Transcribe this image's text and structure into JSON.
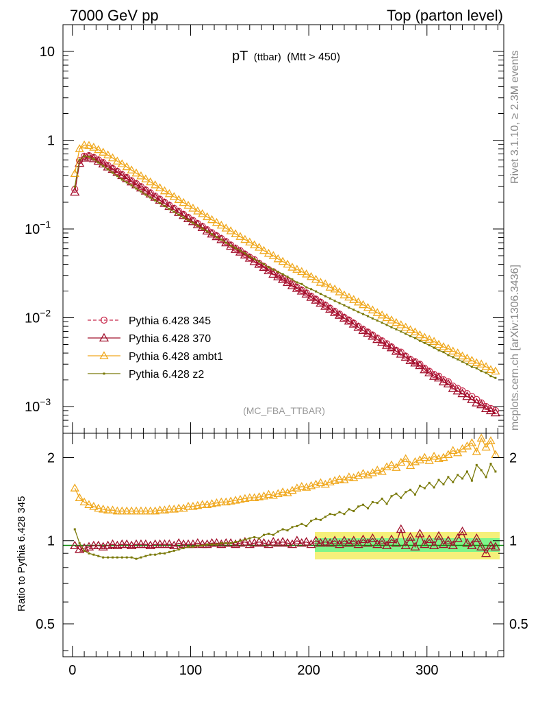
{
  "header": {
    "left": "7000 GeV pp",
    "right": "Top (parton level)"
  },
  "side_labels": {
    "top": "Rivet 3.1.10, ≥ 2.3M events",
    "bottom": "mcplots.cern.ch [arXiv:1306.3436]"
  },
  "colors": {
    "p345": "#c8284b",
    "p370": "#a0102c",
    "ambt1": "#f0a81e",
    "z2": "#7a7a0a",
    "band_yellow": "#f5f07a",
    "band_green": "#7ff58a",
    "ref_line": "#0a8a0a"
  },
  "chart_data": [
    {
      "type": "line",
      "title": "pT (ttbar) (Mtt > 450)",
      "title_parts": {
        "main": "pT",
        "paren": "(ttbar)",
        "cut": "(Mtt > 450)"
      },
      "watermark": "(MC_FBA_TTBAR)",
      "yscale": "log",
      "ylim": [
        0.0005,
        20
      ],
      "xlim": [
        -8,
        365
      ],
      "yticks": [
        {
          "v": 10,
          "label": "10",
          "exp": ""
        },
        {
          "v": 1,
          "label": "1",
          "exp": ""
        },
        {
          "v": 0.1,
          "label": "10",
          "exp": "−1"
        },
        {
          "v": 0.01,
          "label": "10",
          "exp": "−2"
        },
        {
          "v": 0.001,
          "label": "10",
          "exp": "−3"
        }
      ],
      "legend": [
        {
          "name": "Pythia 6.428 345",
          "key": "p345"
        },
        {
          "name": "Pythia 6.428 370",
          "key": "p370"
        },
        {
          "name": "Pythia 6.428 ambt1",
          "key": "ambt1"
        },
        {
          "name": "Pythia 6.428 z2",
          "key": "z2"
        }
      ],
      "x": [
        2,
        6,
        10,
        14,
        18,
        22,
        26,
        30,
        34,
        38,
        42,
        46,
        50,
        54,
        58,
        62,
        66,
        70,
        74,
        78,
        82,
        86,
        90,
        94,
        98,
        102,
        106,
        110,
        114,
        118,
        122,
        126,
        130,
        134,
        138,
        142,
        146,
        150,
        154,
        158,
        162,
        166,
        170,
        174,
        178,
        182,
        186,
        190,
        194,
        198,
        202,
        206,
        210,
        214,
        218,
        222,
        226,
        230,
        234,
        238,
        242,
        246,
        250,
        254,
        258,
        262,
        266,
        270,
        274,
        278,
        282,
        286,
        290,
        294,
        298,
        302,
        306,
        310,
        314,
        318,
        322,
        326,
        330,
        334,
        338,
        342,
        346,
        350,
        354,
        358
      ],
      "series": [
        {
          "name": "Pythia 6.428 345",
          "key": "p345",
          "values": [
            0.28,
            0.59,
            0.66,
            0.67,
            0.64,
            0.6,
            0.56,
            0.52,
            0.48,
            0.445,
            0.41,
            0.38,
            0.35,
            0.325,
            0.3,
            0.275,
            0.255,
            0.235,
            0.217,
            0.2,
            0.185,
            0.171,
            0.158,
            0.146,
            0.135,
            0.125,
            0.115,
            0.107,
            0.098,
            0.091,
            0.084,
            0.078,
            0.072,
            0.066,
            0.061,
            0.057,
            0.052,
            0.048,
            0.045,
            0.041,
            0.038,
            0.035,
            0.033,
            0.03,
            0.028,
            0.026,
            0.024,
            0.022,
            0.0205,
            0.019,
            0.0175,
            0.0162,
            0.015,
            0.0139,
            0.0128,
            0.0118,
            0.011,
            0.0101,
            0.0094,
            0.0087,
            0.008,
            0.0074,
            0.0069,
            0.0064,
            0.0059,
            0.0055,
            0.0051,
            0.0047,
            0.0043,
            0.0041,
            0.0037,
            0.0034,
            0.0032,
            0.003,
            0.0027,
            0.0025,
            0.0023,
            0.0022,
            0.002,
            0.0019,
            0.0017,
            0.0016,
            0.0015,
            0.0014,
            0.0013,
            0.0012,
            0.0011,
            0.001,
            0.00095,
            0.0009
          ]
        },
        {
          "name": "Pythia 6.428 370",
          "key": "p370",
          "values": [
            0.26,
            0.55,
            0.63,
            0.65,
            0.62,
            0.58,
            0.54,
            0.5,
            0.47,
            0.435,
            0.4,
            0.37,
            0.34,
            0.315,
            0.29,
            0.268,
            0.248,
            0.228,
            0.211,
            0.195,
            0.18,
            0.166,
            0.154,
            0.142,
            0.131,
            0.121,
            0.112,
            0.104,
            0.095,
            0.088,
            0.082,
            0.076,
            0.07,
            0.064,
            0.059,
            0.055,
            0.051,
            0.047,
            0.043,
            0.04,
            0.037,
            0.034,
            0.031,
            0.029,
            0.027,
            0.025,
            0.023,
            0.0215,
            0.02,
            0.0185,
            0.017,
            0.0158,
            0.0146,
            0.0135,
            0.0125,
            0.0115,
            0.0107,
            0.0099,
            0.0092,
            0.0085,
            0.0078,
            0.0072,
            0.0067,
            0.0062,
            0.0057,
            0.0053,
            0.0049,
            0.0046,
            0.0042,
            0.0039,
            0.0036,
            0.0033,
            0.0031,
            0.0029,
            0.0026,
            0.0024,
            0.0022,
            0.0021,
            0.0019,
            0.0018,
            0.0016,
            0.0015,
            0.0014,
            0.0013,
            0.0012,
            0.0011,
            0.00105,
            0.00095,
            0.0009,
            0.00085
          ]
        },
        {
          "name": "Pythia 6.428 ambt1",
          "key": "ambt1",
          "values": [
            0.42,
            0.8,
            0.88,
            0.87,
            0.83,
            0.78,
            0.73,
            0.68,
            0.63,
            0.58,
            0.54,
            0.5,
            0.46,
            0.425,
            0.395,
            0.365,
            0.338,
            0.313,
            0.29,
            0.268,
            0.249,
            0.231,
            0.214,
            0.198,
            0.184,
            0.171,
            0.159,
            0.148,
            0.137,
            0.127,
            0.118,
            0.11,
            0.102,
            0.095,
            0.088,
            0.082,
            0.076,
            0.071,
            0.066,
            0.062,
            0.057,
            0.053,
            0.05,
            0.046,
            0.043,
            0.04,
            0.037,
            0.035,
            0.033,
            0.031,
            0.029,
            0.027,
            0.025,
            0.024,
            0.022,
            0.021,
            0.0195,
            0.018,
            0.017,
            0.016,
            0.015,
            0.014,
            0.013,
            0.0122,
            0.0114,
            0.0107,
            0.01,
            0.0094,
            0.0088,
            0.0083,
            0.0078,
            0.0073,
            0.0069,
            0.0064,
            0.006,
            0.0057,
            0.0054,
            0.005,
            0.0047,
            0.0045,
            0.0042,
            0.004,
            0.0037,
            0.0035,
            0.0033,
            0.0031,
            0.003,
            0.0028,
            0.0026,
            0.0025
          ]
        },
        {
          "name": "Pythia 6.428 z2",
          "key": "z2",
          "values": [
            0.3,
            0.6,
            0.66,
            0.65,
            0.61,
            0.56,
            0.51,
            0.47,
            0.43,
            0.395,
            0.36,
            0.335,
            0.31,
            0.285,
            0.265,
            0.243,
            0.226,
            0.21,
            0.195,
            0.181,
            0.168,
            0.156,
            0.145,
            0.135,
            0.126,
            0.117,
            0.109,
            0.101,
            0.094,
            0.087,
            0.081,
            0.076,
            0.07,
            0.065,
            0.061,
            0.057,
            0.053,
            0.049,
            0.046,
            0.043,
            0.04,
            0.037,
            0.035,
            0.033,
            0.031,
            0.029,
            0.027,
            0.025,
            0.024,
            0.022,
            0.021,
            0.0198,
            0.0186,
            0.0175,
            0.0165,
            0.0155,
            0.0146,
            0.0138,
            0.013,
            0.0123,
            0.0116,
            0.011,
            0.0104,
            0.0098,
            0.0093,
            0.0088,
            0.0083,
            0.0078,
            0.0074,
            0.007,
            0.0066,
            0.0062,
            0.0059,
            0.0055,
            0.0052,
            0.0049,
            0.0046,
            0.0043,
            0.0041,
            0.0038,
            0.0036,
            0.0034,
            0.0032,
            0.003,
            0.0028,
            0.0027,
            0.0025,
            0.0024,
            0.0022,
            0.0021
          ]
        }
      ]
    },
    {
      "type": "line",
      "ylabel": "Ratio to Pythia 6.428 345",
      "yscale": "log",
      "ylim": [
        0.38,
        2.45
      ],
      "xlim": [
        -8,
        365
      ],
      "xticks": [
        0,
        100,
        200,
        300
      ],
      "yticks": [
        {
          "v": 2,
          "label": "2"
        },
        {
          "v": 1,
          "label": "1"
        },
        {
          "v": 0.5,
          "label": "0.5"
        }
      ],
      "reference": 1,
      "series": [
        {
          "name": "Pythia 6.428 370",
          "key": "p370",
          "values": [
            0.96,
            0.93,
            0.94,
            0.95,
            0.96,
            0.96,
            0.95,
            0.96,
            0.97,
            0.96,
            0.97,
            0.97,
            0.96,
            0.97,
            0.97,
            0.97,
            0.96,
            0.97,
            0.97,
            0.97,
            0.97,
            0.96,
            0.98,
            0.97,
            0.97,
            0.97,
            0.98,
            0.97,
            0.97,
            0.98,
            0.98,
            0.97,
            0.98,
            0.98,
            0.97,
            0.98,
            0.99,
            0.97,
            0.98,
            0.99,
            0.98,
            0.97,
            0.99,
            0.98,
            0.99,
            0.98,
            0.97,
            1.0,
            0.98,
            0.99,
            0.97,
            1.0,
            0.98,
            0.99,
            0.98,
            1.0,
            0.97,
            1.0,
            0.98,
            1.0,
            0.97,
            1.01,
            0.98,
            1.02,
            0.97,
            1.0,
            0.96,
            1.01,
            0.98,
            1.1,
            0.96,
            1.03,
            0.95,
            1.06,
            0.97,
            1.01,
            0.96,
            1.04,
            0.97,
            1.0,
            0.96,
            1.02,
            1.08,
            0.98,
            0.96,
            1.02,
            0.95,
            0.9,
            0.96,
            0.95
          ]
        },
        {
          "name": "Pythia 6.428 ambt1",
          "key": "ambt1",
          "values": [
            1.55,
            1.43,
            1.38,
            1.35,
            1.33,
            1.31,
            1.3,
            1.29,
            1.29,
            1.28,
            1.28,
            1.28,
            1.28,
            1.28,
            1.28,
            1.28,
            1.28,
            1.28,
            1.29,
            1.29,
            1.3,
            1.3,
            1.31,
            1.31,
            1.33,
            1.33,
            1.34,
            1.35,
            1.35,
            1.36,
            1.37,
            1.38,
            1.38,
            1.39,
            1.4,
            1.41,
            1.42,
            1.43,
            1.43,
            1.44,
            1.45,
            1.47,
            1.46,
            1.48,
            1.5,
            1.49,
            1.52,
            1.55,
            1.57,
            1.56,
            1.58,
            1.6,
            1.62,
            1.6,
            1.63,
            1.65,
            1.67,
            1.66,
            1.7,
            1.69,
            1.72,
            1.75,
            1.73,
            1.76,
            1.8,
            1.78,
            1.85,
            1.88,
            1.84,
            1.92,
            1.98,
            1.87,
            1.93,
            1.96,
            2.0,
            1.95,
            2.02,
            1.98,
            2.0,
            2.05,
            2.12,
            2.08,
            2.15,
            2.2,
            2.26,
            2.1,
            2.35,
            2.18,
            2.3,
            2.05
          ]
        },
        {
          "name": "Pythia 6.428 z2",
          "key": "z2",
          "values": [
            1.1,
            0.98,
            0.92,
            0.9,
            0.89,
            0.88,
            0.87,
            0.87,
            0.87,
            0.87,
            0.87,
            0.87,
            0.87,
            0.86,
            0.87,
            0.88,
            0.89,
            0.89,
            0.9,
            0.9,
            0.91,
            0.92,
            0.93,
            0.94,
            0.95,
            0.95,
            0.96,
            0.96,
            0.97,
            0.97,
            0.97,
            0.98,
            0.98,
            0.98,
            0.99,
            1.0,
            1.01,
            1.02,
            1.03,
            1.02,
            1.05,
            1.06,
            1.05,
            1.08,
            1.1,
            1.09,
            1.12,
            1.13,
            1.15,
            1.13,
            1.18,
            1.2,
            1.19,
            1.22,
            1.25,
            1.24,
            1.27,
            1.25,
            1.3,
            1.28,
            1.33,
            1.35,
            1.31,
            1.38,
            1.37,
            1.42,
            1.36,
            1.45,
            1.48,
            1.43,
            1.5,
            1.53,
            1.47,
            1.58,
            1.55,
            1.62,
            1.56,
            1.66,
            1.6,
            1.7,
            1.63,
            1.73,
            1.68,
            1.78,
            1.65,
            1.88,
            1.8,
            1.7,
            1.9,
            1.78
          ]
        }
      ]
    }
  ]
}
